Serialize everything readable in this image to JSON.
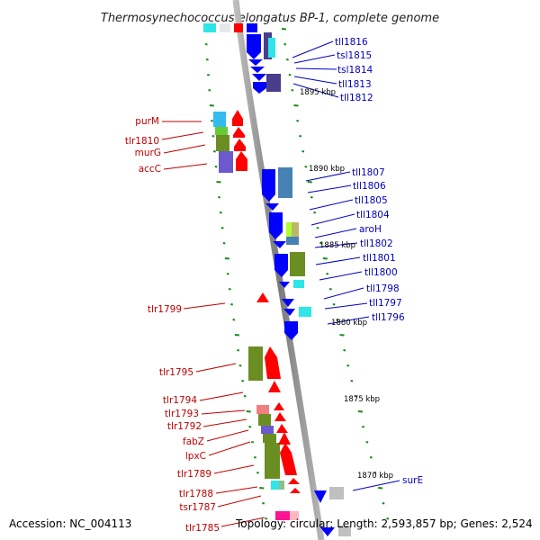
{
  "title": "Thermosynechococcus elongatus BP-1, complete genome",
  "accession": "Accession: NC_004113",
  "topology": "Topology: circular; Length: 2,593,857 bp; Genes: 2,524",
  "kbp_markers": [
    "1895 kbp",
    "1890 kbp",
    "1885 kbp",
    "1880 kbp",
    "1875 kbp",
    "1870 kbp"
  ],
  "forward_genes": [
    "purM",
    "tlr1810",
    "murG",
    "accC",
    "tlr1799",
    "tlr1795",
    "tlr1794",
    "tlr1793",
    "tlr1792",
    "fabZ",
    "lpxC",
    "tlr1789",
    "tlr1788",
    "tsr1787",
    "tlr1785"
  ],
  "reverse_genes": [
    "tll1816",
    "tsl1815",
    "tsl1814",
    "tll1813",
    "tll1812",
    "tll1807",
    "tll1806",
    "tll1805",
    "tll1804",
    "aroH",
    "tll1802",
    "tll1801",
    "tll1800",
    "tll1798",
    "tll1797",
    "tll1796",
    "surE"
  ],
  "colors": {
    "forward": "#ff0000",
    "reverse": "#0000ff",
    "backbone": "#8c8c8c",
    "ticks": "#1a8c1a",
    "forward_label": "#c00000",
    "reverse_label": "#0000c0"
  }
}
